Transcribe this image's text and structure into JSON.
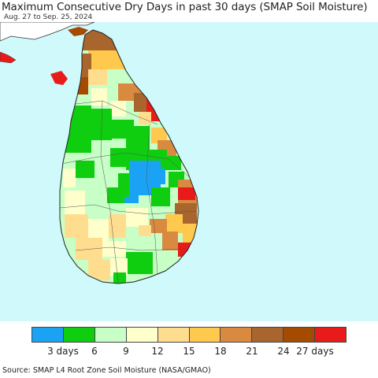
{
  "title": "Maximum Consecutive Dry Days in past 30 days (SMAP Soil Moisture)",
  "date_range": "Aug. 27 to Sep. 25, 2024",
  "source": "Source: SMAP L4 Root Zone Soil Moisture (NASA/GMAO)",
  "colors": {
    "ocean": "#cff9fb",
    "outside_land": "#ffffff",
    "coast": "#222222",
    "border": "#555555"
  },
  "legend": {
    "swatches": [
      "#1aa3f5",
      "#0fcd0f",
      "#c7ffc7",
      "#ffffcc",
      "#ffdd8f",
      "#ffc94d",
      "#d98a40",
      "#a8652e",
      "#a44b00",
      "#e81a1a"
    ],
    "tick_labels": [
      {
        "text": "3 days",
        "pos": 1
      },
      {
        "text": "6",
        "pos": 2
      },
      {
        "text": "9",
        "pos": 3
      },
      {
        "text": "12",
        "pos": 4
      },
      {
        "text": "15",
        "pos": 5
      },
      {
        "text": "18",
        "pos": 6
      },
      {
        "text": "21",
        "pos": 7
      },
      {
        "text": "24",
        "pos": 8
      },
      {
        "text": "27 days",
        "pos": 9
      }
    ]
  }
}
